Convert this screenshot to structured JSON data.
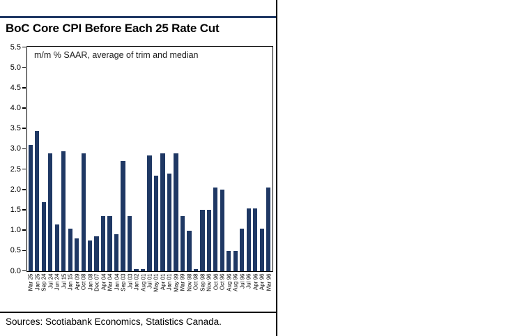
{
  "header": {
    "title": "BoC Core CPI Before Each 25 Rate Cut",
    "subtitle": "m/m % SAAR, average of trim and median"
  },
  "footer": {
    "sources": "Sources: Scotiabank Economics, Statistics Canada."
  },
  "colors": {
    "bar": "#1f3864",
    "accent_rule": "#1f3864",
    "axis": "#000000",
    "background": "#ffffff"
  },
  "chart_data": {
    "type": "bar",
    "title": "BoC Core CPI Before Each 25 Rate Cut",
    "subtitle": "m/m % SAAR, average of trim and median",
    "xlabel": "",
    "ylabel": "",
    "ylim": [
      0,
      5.5
    ],
    "ytick_step": 0.5,
    "yticks": [
      "0.0",
      "0.5",
      "1.0",
      "1.5",
      "2.0",
      "2.5",
      "3.0",
      "3.5",
      "4.0",
      "4.5",
      "5.0",
      "5.5"
    ],
    "grid": false,
    "legend": false,
    "bar_color": "#1f3864",
    "categories": [
      "Mar 25",
      "Jan 25",
      "Sep 24",
      "Jul 24",
      "Jun 24",
      "Jul 15",
      "Jan 15",
      "Apr 09",
      "Oct 08",
      "Jan 08",
      "Dec 07",
      "Apr 04",
      "Mar 04",
      "Jan 04",
      "Sep 03",
      "Jul 03",
      "Jan 02",
      "Aug 01",
      "Jul 01",
      "May 01",
      "Apr 01",
      "Jan 01",
      "May 99",
      "Mar 99",
      "Nov 98",
      "Oct 98",
      "Sep 98",
      "Nov 96",
      "Oct 96",
      "Oct 96",
      "Aug 96",
      "Aug 96",
      "Jul 96",
      "Jul 96",
      "Apr 96",
      "Apr 96",
      "Mar 96"
    ],
    "values": [
      3.1,
      3.45,
      1.7,
      2.9,
      1.15,
      2.95,
      1.05,
      0.8,
      2.9,
      0.75,
      0.85,
      1.35,
      1.35,
      0.9,
      2.7,
      1.35,
      0.05,
      0.05,
      2.85,
      2.35,
      2.9,
      2.4,
      2.9,
      1.35,
      1.0,
      0.05,
      1.5,
      1.5,
      2.05,
      2.0,
      0.5,
      0.5,
      1.05,
      1.55,
      1.55,
      1.05,
      2.05
    ]
  }
}
